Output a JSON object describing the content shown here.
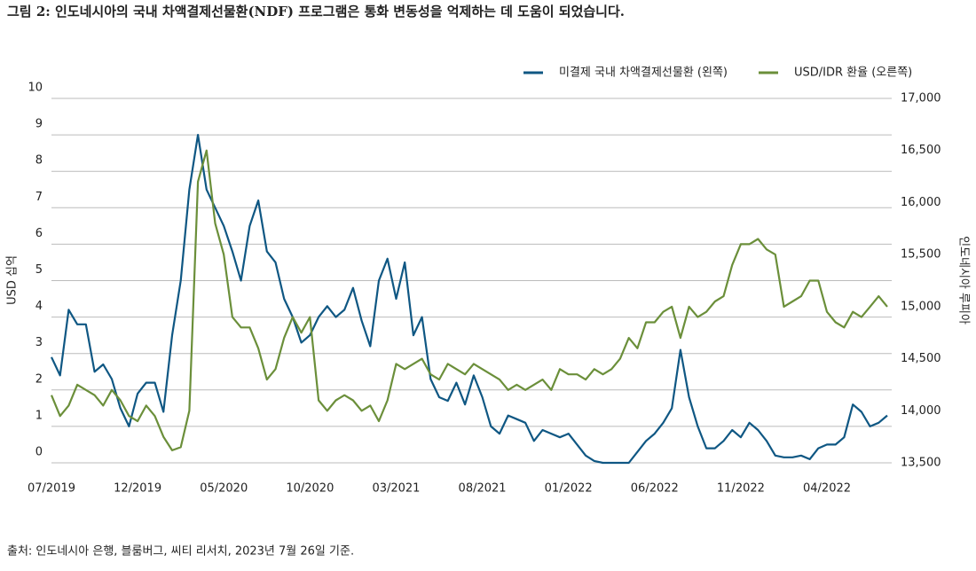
{
  "chart_data": {
    "type": "line",
    "title": "그림 2: 인도네시아의 국내 차액결제선물환(NDF) 프로그램은 통화 변동성을 억제하는 데 도움이 되었습니다.",
    "source": "출처: 인도네시아 은행, 블룸버그, 씨티 리서치, 2023년 7월 26일 기준.",
    "ylabel": "USD 십억",
    "y2label": "인도네시아 루피아",
    "categories": [
      "07/2019",
      null,
      null,
      null,
      null,
      null,
      null,
      null,
      null,
      null,
      "12/2019",
      null,
      null,
      null,
      null,
      null,
      null,
      null,
      null,
      null,
      "05/2020",
      null,
      null,
      null,
      null,
      null,
      null,
      null,
      null,
      null,
      "10/2020",
      null,
      null,
      null,
      null,
      null,
      null,
      null,
      null,
      null,
      "03/2021",
      null,
      null,
      null,
      null,
      null,
      null,
      null,
      null,
      null,
      "08/2021",
      null,
      null,
      null,
      null,
      null,
      null,
      null,
      null,
      null,
      "01/2022",
      null,
      null,
      null,
      null,
      null,
      null,
      null,
      null,
      null,
      "06/2022",
      null,
      null,
      null,
      null,
      null,
      null,
      null,
      null,
      null,
      "11/2022",
      null,
      null,
      null,
      null,
      null,
      null,
      null,
      null,
      null,
      "04/2022",
      null,
      null,
      null,
      null,
      null,
      null,
      null
    ],
    "series": [
      {
        "name": "미결제 국내 차액결제선물환 (왼쪽)",
        "color": "#0f5783",
        "axis": "y",
        "values": [
          2.9,
          2.4,
          4.2,
          3.8,
          3.8,
          2.5,
          2.7,
          2.3,
          1.5,
          1.0,
          1.9,
          2.2,
          2.2,
          1.4,
          3.5,
          5.0,
          7.5,
          9.0,
          7.5,
          7.0,
          6.5,
          5.8,
          5.0,
          6.5,
          7.2,
          5.8,
          5.5,
          4.5,
          4.0,
          3.3,
          3.5,
          4.0,
          4.3,
          4.0,
          4.2,
          4.8,
          3.9,
          3.2,
          5.0,
          5.6,
          4.5,
          5.5,
          3.5,
          4.0,
          2.3,
          1.8,
          1.7,
          2.2,
          1.6,
          2.4,
          1.8,
          1.0,
          0.8,
          1.3,
          1.2,
          1.1,
          0.6,
          0.9,
          0.8,
          0.7,
          0.8,
          0.5,
          0.2,
          0.05,
          0,
          0,
          0,
          0,
          0.3,
          0.6,
          0.8,
          1.1,
          1.5,
          3.1,
          1.8,
          1.0,
          0.4,
          0.4,
          0.6,
          0.9,
          0.7,
          1.1,
          0.9,
          0.6,
          0.2,
          0.15,
          0.15,
          0.2,
          0.1,
          0.4,
          0.5,
          0.5,
          0.7,
          1.6,
          1.4,
          1.0,
          1.1,
          1.3
        ]
      },
      {
        "name": "USD/IDR 환율 (오른쪽)",
        "color": "#6b8f3a",
        "axis": "y2",
        "values": [
          14150,
          13950,
          14050,
          14250,
          14200,
          14150,
          14050,
          14200,
          14100,
          13950,
          13900,
          14050,
          13950,
          13750,
          13620,
          13650,
          14000,
          16200,
          16500,
          15800,
          15500,
          14900,
          14800,
          14800,
          14600,
          14300,
          14400,
          14700,
          14900,
          14750,
          14900,
          14100,
          14000,
          14100,
          14150,
          14100,
          14000,
          14050,
          13900,
          14100,
          14450,
          14400,
          14450,
          14500,
          14350,
          14300,
          14450,
          14400,
          14350,
          14450,
          14400,
          14350,
          14300,
          14200,
          14250,
          14200,
          14250,
          14300,
          14200,
          14400,
          14350,
          14350,
          14300,
          14400,
          14350,
          14400,
          14500,
          14700,
          14600,
          14850,
          14850,
          14950,
          15000,
          14700,
          15000,
          14900,
          14950,
          15050,
          15100,
          15400,
          15600,
          15600,
          15650,
          15550,
          15500,
          15000,
          15050,
          15100,
          15250,
          15250,
          14950,
          14850,
          14800,
          14950,
          14900,
          15000,
          15100,
          15000
        ]
      }
    ],
    "ylim": [
      0,
      10
    ],
    "yticks": [
      0,
      1,
      2,
      3,
      4,
      5,
      6,
      7,
      8,
      9,
      10
    ],
    "y2lim": [
      13500,
      17000
    ],
    "y2ticks": [
      {
        "value": 13500,
        "label": "13,500"
      },
      {
        "value": 14000,
        "label": "14,000"
      },
      {
        "value": 14500,
        "label": "14,500"
      },
      {
        "value": 15000,
        "label": "15,000"
      },
      {
        "value": 15500,
        "label": "15,500"
      },
      {
        "value": 16000,
        "label": "16,000"
      },
      {
        "value": 16500,
        "label": "16,500"
      },
      {
        "value": 17000,
        "label": "17,000"
      }
    ],
    "grid": true,
    "legend": "top-right"
  }
}
